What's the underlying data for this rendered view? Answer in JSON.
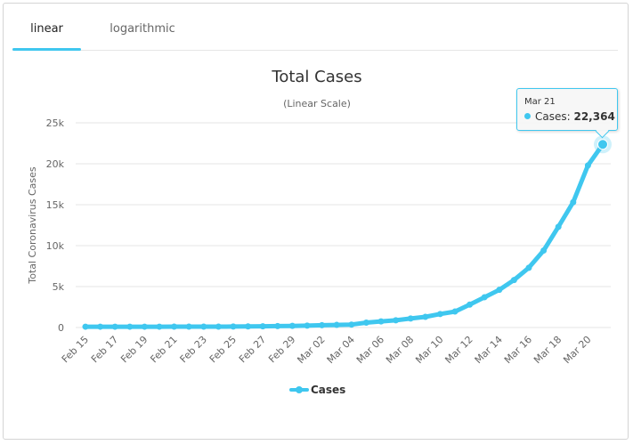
{
  "tabs": [
    {
      "label": "linear",
      "active": true
    },
    {
      "label": "logarithmic",
      "active": false
    }
  ],
  "colors": {
    "series": "#3fc7ef",
    "tab_underline": "#3fc7ef",
    "grid": "#e6e6e6",
    "text": "#333333",
    "axis_text": "#666666"
  },
  "tooltip": {
    "date": "Mar 21",
    "series_label": "Cases",
    "value_text": "22,364"
  },
  "chart_data": {
    "type": "line",
    "title": "Total Cases",
    "subtitle": "(Linear Scale)",
    "ylabel": "Total Coronavirus Cases",
    "xlabel": "",
    "ylim": [
      0,
      25000
    ],
    "y_ticks": [
      0,
      5000,
      10000,
      15000,
      20000,
      25000
    ],
    "y_tick_labels": [
      "0",
      "5k",
      "10k",
      "15k",
      "20k",
      "25k"
    ],
    "grid": true,
    "legend": "bottom-center",
    "categories": [
      "Feb 15",
      "Feb 16",
      "Feb 17",
      "Feb 18",
      "Feb 19",
      "Feb 20",
      "Feb 21",
      "Feb 22",
      "Feb 23",
      "Feb 24",
      "Feb 25",
      "Feb 26",
      "Feb 27",
      "Feb 28",
      "Feb 29",
      "Mar 01",
      "Mar 02",
      "Mar 03",
      "Mar 04",
      "Mar 05",
      "Mar 06",
      "Mar 07",
      "Mar 08",
      "Mar 09",
      "Mar 10",
      "Mar 11",
      "Mar 12",
      "Mar 13",
      "Mar 14",
      "Mar 15",
      "Mar 16",
      "Mar 17",
      "Mar 18",
      "Mar 19",
      "Mar 20",
      "Mar 21"
    ],
    "x_tick_labels": [
      "Feb 15",
      "Feb 17",
      "Feb 19",
      "Feb 21",
      "Feb 23",
      "Feb 25",
      "Feb 27",
      "Feb 29",
      "Mar 02",
      "Mar 04",
      "Mar 06",
      "Mar 08",
      "Mar 10",
      "Mar 12",
      "Mar 14",
      "Mar 16",
      "Mar 18",
      "Mar 20"
    ],
    "series": [
      {
        "name": "Cases",
        "values": [
          100,
          100,
          100,
          100,
          100,
          100,
          110,
          110,
          110,
          110,
          120,
          130,
          150,
          170,
          200,
          230,
          280,
          320,
          360,
          600,
          750,
          880,
          1100,
          1300,
          1650,
          1950,
          2800,
          3700,
          4600,
          5800,
          7300,
          9400,
          12300,
          15300,
          19800,
          22364
        ]
      }
    ]
  }
}
